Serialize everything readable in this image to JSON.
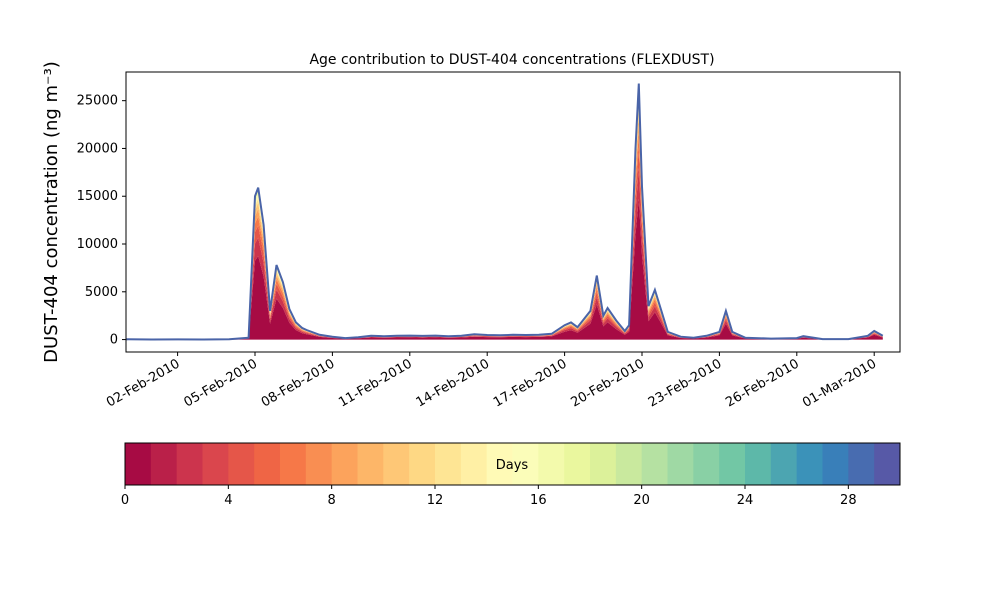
{
  "chart_data": {
    "type": "area",
    "title": "Age contribution to DUST-404 concentrations (FLEXDUST)",
    "ylabel": "DUST-404 concentration (ng m⁻³)",
    "xlabel": "",
    "x_range": [
      "2010-01-31",
      "2010-03-02"
    ],
    "ylim": [
      -1300,
      28000
    ],
    "grid": false,
    "x_ticks": [
      "02-Feb-2010",
      "05-Feb-2010",
      "08-Feb-2010",
      "11-Feb-2010",
      "14-Feb-2010",
      "17-Feb-2010",
      "20-Feb-2010",
      "23-Feb-2010",
      "26-Feb-2010",
      "01-Mar-2010"
    ],
    "y_ticks": [
      0,
      5000,
      10000,
      15000,
      20000,
      25000
    ],
    "series": [
      {
        "total_concentration": [
          [
            "2010-01-31",
            30
          ],
          [
            "2010-02-01",
            10
          ],
          [
            "2010-02-02",
            20
          ],
          [
            "2010-02-03",
            10
          ],
          [
            "2010-02-04",
            30
          ],
          [
            "2010-02-04 18:00",
            200
          ],
          [
            "2010-02-05",
            15000
          ],
          [
            "2010-02-05 03:00",
            15900
          ],
          [
            "2010-02-05 08:00",
            12000
          ],
          [
            "2010-02-05 14:00",
            3000
          ],
          [
            "2010-02-05 20:00",
            7800
          ],
          [
            "2010-02-06 02:00",
            6000
          ],
          [
            "2010-02-06 08:00",
            3200
          ],
          [
            "2010-02-06 14:00",
            1800
          ],
          [
            "2010-02-06 20:00",
            1200
          ],
          [
            "2010-02-07",
            1000
          ],
          [
            "2010-02-07 12:00",
            500
          ],
          [
            "2010-02-08",
            300
          ],
          [
            "2010-02-08 12:00",
            150
          ],
          [
            "2010-02-09",
            250
          ],
          [
            "2010-02-09 12:00",
            400
          ],
          [
            "2010-02-10",
            350
          ],
          [
            "2010-02-10 12:00",
            400
          ],
          [
            "2010-02-11",
            420
          ],
          [
            "2010-02-11 12:00",
            380
          ],
          [
            "2010-02-12",
            420
          ],
          [
            "2010-02-12 12:00",
            350
          ],
          [
            "2010-02-13",
            400
          ],
          [
            "2010-02-13 12:00",
            550
          ],
          [
            "2010-02-14",
            480
          ],
          [
            "2010-02-14 12:00",
            450
          ],
          [
            "2010-02-15",
            500
          ],
          [
            "2010-02-15 12:00",
            480
          ],
          [
            "2010-02-16",
            500
          ],
          [
            "2010-02-16 12:00",
            600
          ],
          [
            "2010-02-17",
            1500
          ],
          [
            "2010-02-17 06:00",
            1800
          ],
          [
            "2010-02-17 12:00",
            1300
          ],
          [
            "2010-02-18",
            3000
          ],
          [
            "2010-02-18 06:00",
            6700
          ],
          [
            "2010-02-18 12:00",
            2500
          ],
          [
            "2010-02-18 16:00",
            3300
          ],
          [
            "2010-02-19",
            2000
          ],
          [
            "2010-02-19 08:00",
            900
          ],
          [
            "2010-02-19 12:00",
            1500
          ],
          [
            "2010-02-19 18:00",
            20000
          ],
          [
            "2010-02-19 21:00",
            26800
          ],
          [
            "2010-02-20",
            16000
          ],
          [
            "2010-02-20 06:00",
            3500
          ],
          [
            "2010-02-20 12:00",
            5200
          ],
          [
            "2010-02-20 18:00",
            3000
          ],
          [
            "2010-02-21",
            800
          ],
          [
            "2010-02-21 12:00",
            300
          ],
          [
            "2010-02-22",
            200
          ],
          [
            "2010-02-22 12:00",
            400
          ],
          [
            "2010-02-23",
            800
          ],
          [
            "2010-02-23 06:00",
            3000
          ],
          [
            "2010-02-23 12:00",
            800
          ],
          [
            "2010-02-24",
            200
          ],
          [
            "2010-02-25",
            100
          ],
          [
            "2010-02-26",
            150
          ],
          [
            "2010-02-26 06:00",
            350
          ],
          [
            "2010-02-26 18:00",
            150
          ],
          [
            "2010-02-27",
            50
          ],
          [
            "2010-02-28",
            50
          ],
          [
            "2010-02-28 18:00",
            400
          ],
          [
            "2010-03-01",
            900
          ],
          [
            "2010-03-01 08:00",
            400
          ]
        ]
      }
    ],
    "age_distribution_note": "",
    "colorbar": {
      "label": "Days",
      "min": 0,
      "max": 30,
      "levels": 30,
      "ticks": [
        0,
        4,
        8,
        12,
        16,
        20,
        24,
        28
      ],
      "colormap": "Spectral"
    },
    "colors": {
      "line": "#4a64a8",
      "young": "#9e0142",
      "old": "#5e4fa2"
    }
  }
}
